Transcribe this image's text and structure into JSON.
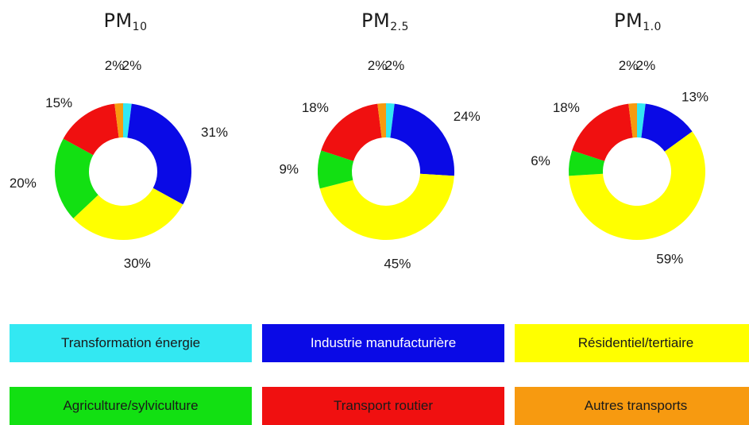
{
  "chart_data": {
    "type": "pie",
    "titles": [
      {
        "base": "PM",
        "sub": "10"
      },
      {
        "base": "PM",
        "sub": "2.5"
      },
      {
        "base": "PM",
        "sub": "1.0"
      }
    ],
    "categories": [
      "Transformation énergie",
      "Industrie manufacturière",
      "Résidentiel/tertiaire",
      "Agriculture/sylviculture",
      "Transport routier",
      "Autres transports"
    ],
    "colors": [
      "#33e8f2",
      "#0a0ae6",
      "#ffff00",
      "#12e012",
      "#f01010",
      "#f79a10"
    ],
    "charts": [
      {
        "values": [
          2,
          31,
          30,
          20,
          15,
          2
        ],
        "labels": [
          "2%",
          "31%",
          "30%",
          "20%",
          "15%",
          "2%"
        ]
      },
      {
        "values": [
          2,
          24,
          45,
          9,
          18,
          2
        ],
        "labels": [
          "2%",
          "24%",
          "45%",
          "9%",
          "18%",
          "2%"
        ]
      },
      {
        "values": [
          2,
          13,
          59,
          6,
          18,
          2
        ],
        "labels": [
          "2%",
          "13%",
          "59%",
          "6%",
          "18%",
          "2%"
        ]
      }
    ],
    "legend_placement": "bottom"
  }
}
